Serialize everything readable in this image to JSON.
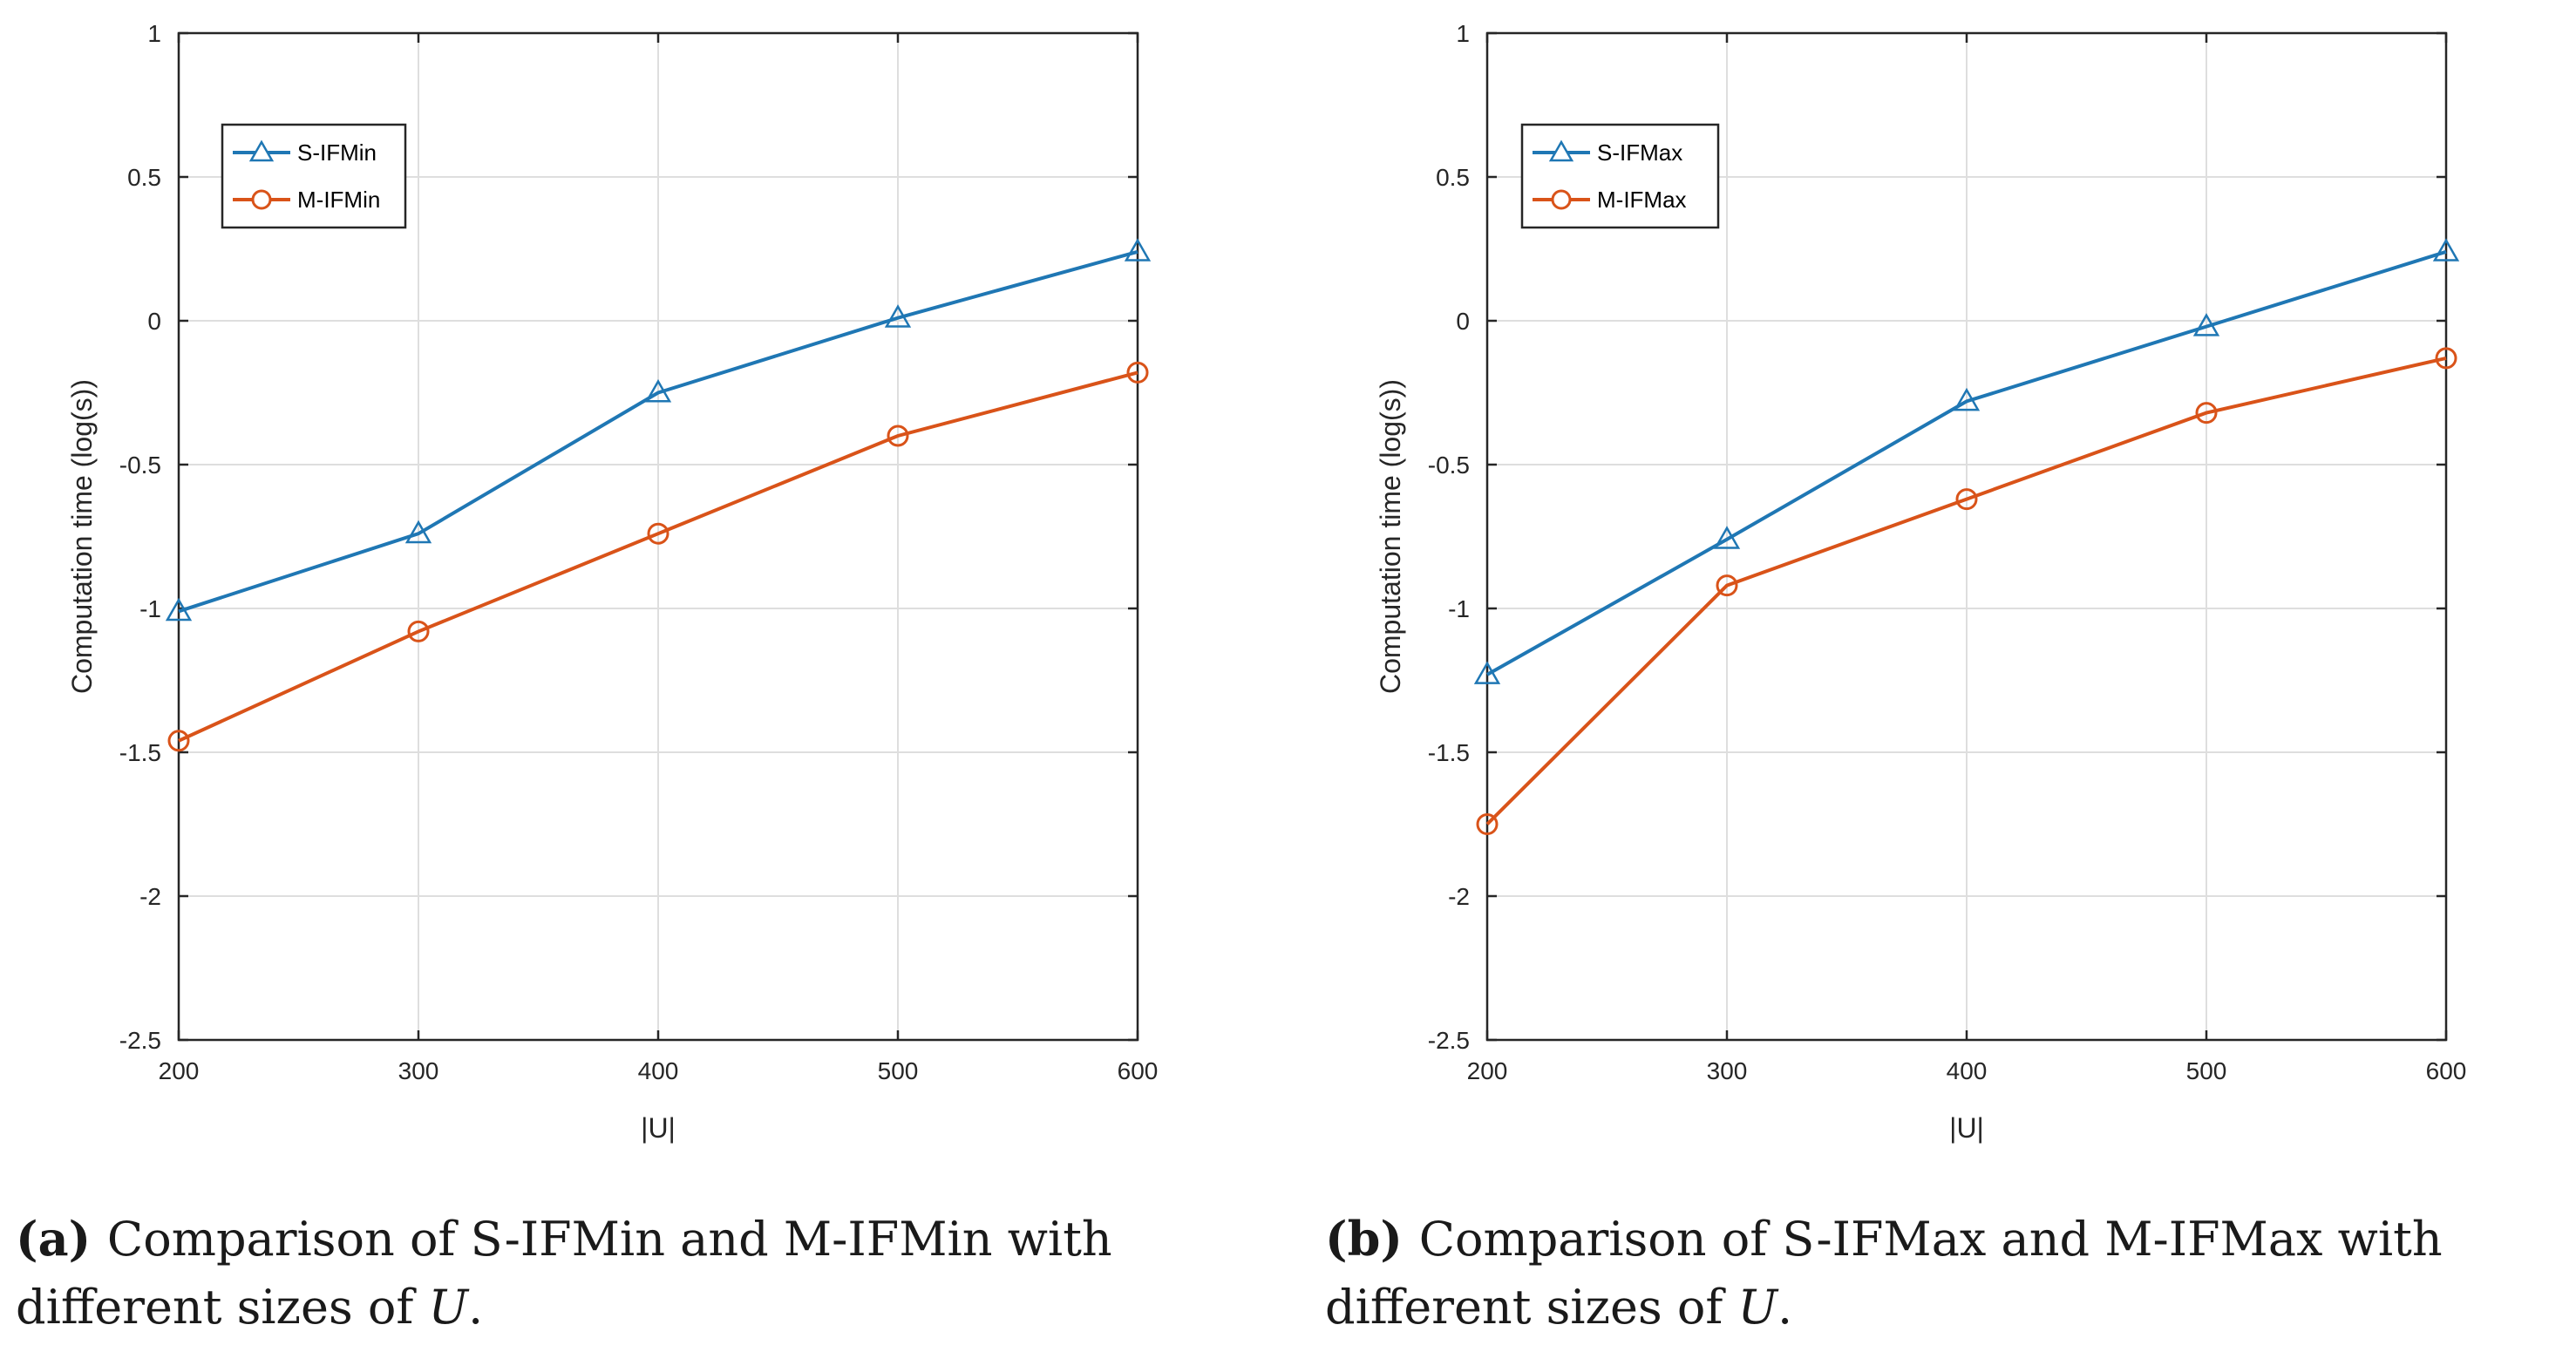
{
  "chart_data": [
    {
      "type": "line",
      "panel_letter": "a",
      "caption_line1": "Comparison of S-IFMin and M-IFMin with",
      "caption_line2_prefix": "different sizes of",
      "caption_var": "U",
      "caption_end": ".",
      "xlabel": "|U|",
      "ylabel": "Computation time (log(s))",
      "x": [
        200,
        300,
        400,
        500,
        600
      ],
      "xlim": [
        200,
        600
      ],
      "ylim": [
        -2.5,
        1
      ],
      "xticks": [
        200,
        300,
        400,
        500,
        600
      ],
      "yticks": [
        1,
        0.5,
        0,
        -0.5,
        -1,
        -1.5,
        -2,
        -2.5
      ],
      "ytick_labels": [
        "1",
        "0.5",
        "0",
        "-0.5",
        "-1",
        "-1.5",
        "-2",
        "-2.5"
      ],
      "grid": true,
      "legend": "top-left",
      "series": [
        {
          "name": "S-IFMin",
          "marker": "triangle",
          "color": "#1f77b4",
          "values": [
            -1.01,
            -0.74,
            -0.25,
            0.01,
            0.24
          ]
        },
        {
          "name": "M-IFMin",
          "marker": "circle",
          "color": "#d95319",
          "values": [
            -1.46,
            -1.08,
            -0.74,
            -0.4,
            -0.18
          ]
        }
      ]
    },
    {
      "type": "line",
      "panel_letter": "b",
      "caption_line1": "Comparison of S-IFMax and M-IFMax with",
      "caption_line2_prefix": "different sizes of",
      "caption_var": "U",
      "caption_end": ".",
      "xlabel": "|U|",
      "ylabel": "Computation time (log(s))",
      "x": [
        200,
        300,
        400,
        500,
        600
      ],
      "xlim": [
        200,
        600
      ],
      "ylim": [
        -2.5,
        1
      ],
      "xticks": [
        200,
        300,
        400,
        500,
        600
      ],
      "yticks": [
        1,
        0.5,
        0,
        -0.5,
        -1,
        -1.5,
        -2,
        -2.5
      ],
      "ytick_labels": [
        "1",
        "0.5",
        "0",
        "-0.5",
        "-1",
        "-1.5",
        "-2",
        "-2.5"
      ],
      "grid": true,
      "legend": "top-left",
      "series": [
        {
          "name": "S-IFMax",
          "marker": "triangle",
          "color": "#1f77b4",
          "values": [
            -1.23,
            -0.76,
            -0.28,
            -0.02,
            0.24
          ]
        },
        {
          "name": "M-IFMax",
          "marker": "circle",
          "color": "#d95319",
          "values": [
            -1.75,
            -0.92,
            -0.62,
            -0.32,
            -0.13
          ]
        }
      ]
    }
  ]
}
